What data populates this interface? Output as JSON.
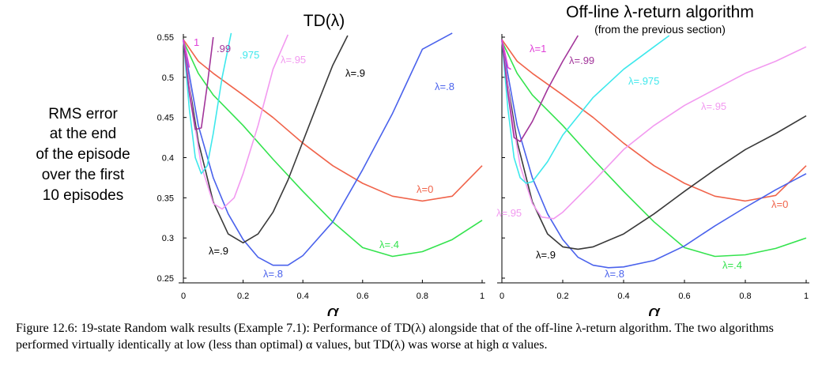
{
  "y_label_lines": [
    "RMS error",
    "at the end",
    "of the episode",
    "over the first",
    "10 episodes"
  ],
  "caption": "Figure 12.6: 19-state Random walk results (Example 7.1): Performance of TD(λ) alongside that of the off-line λ-return algorithm. The two algorithms performed virtually identically at low (less than optimal) α values, but TD(λ) was worse at high α values.",
  "chart_data": [
    {
      "type": "line",
      "title": "TD(λ)",
      "subtitle": "",
      "xlabel": "α",
      "ylabel": "RMS error at the end of the episode over the first 10 episodes",
      "xlim": [
        0,
        1
      ],
      "ylim": [
        0.25,
        0.55
      ],
      "xticks": [
        "0",
        "0.2",
        "0.4",
        "0.6",
        "0.8",
        "1"
      ],
      "yticks": [
        "0.25",
        "0.3",
        "0.35",
        "0.4",
        "0.45",
        "0.5",
        "0.55"
      ],
      "series": [
        {
          "name": "λ=0",
          "color": "#f0634a",
          "x": [
            0,
            0.05,
            0.1,
            0.2,
            0.3,
            0.4,
            0.5,
            0.6,
            0.7,
            0.8,
            0.9,
            1.0
          ],
          "y": [
            0.547,
            0.52,
            0.505,
            0.478,
            0.45,
            0.418,
            0.39,
            0.368,
            0.352,
            0.346,
            0.352,
            0.39
          ]
        },
        {
          "name": "λ=.4",
          "color": "#34e34e",
          "x": [
            0,
            0.05,
            0.1,
            0.2,
            0.3,
            0.4,
            0.5,
            0.6,
            0.7,
            0.8,
            0.9,
            1.0
          ],
          "y": [
            0.545,
            0.505,
            0.478,
            0.44,
            0.398,
            0.358,
            0.32,
            0.288,
            0.277,
            0.283,
            0.298,
            0.322
          ]
        },
        {
          "name": "λ=.8",
          "color": "#4a62ec",
          "x": [
            0,
            0.05,
            0.1,
            0.15,
            0.2,
            0.25,
            0.3,
            0.35,
            0.4,
            0.5,
            0.6,
            0.7,
            0.8,
            0.9
          ],
          "y": [
            0.545,
            0.44,
            0.375,
            0.33,
            0.298,
            0.276,
            0.266,
            0.266,
            0.278,
            0.32,
            0.385,
            0.455,
            0.535,
            0.555
          ]
        },
        {
          "name": "λ=.9",
          "color": "#3a3a3a",
          "x": [
            0,
            0.02,
            0.05,
            0.1,
            0.15,
            0.2,
            0.25,
            0.3,
            0.35,
            0.4,
            0.45,
            0.5,
            0.55
          ],
          "y": [
            0.547,
            0.49,
            0.42,
            0.345,
            0.305,
            0.294,
            0.305,
            0.332,
            0.372,
            0.42,
            0.468,
            0.515,
            0.552
          ]
        },
        {
          "name": "λ=.95",
          "color": "#f29af0",
          "x": [
            0,
            0.03,
            0.06,
            0.1,
            0.13,
            0.17,
            0.2,
            0.25,
            0.3,
            0.35
          ],
          "y": [
            0.547,
            0.46,
            0.39,
            0.343,
            0.336,
            0.35,
            0.38,
            0.44,
            0.51,
            0.553
          ]
        },
        {
          "name": ".975",
          "color": "#3ee8ec",
          "x": [
            0,
            0.02,
            0.04,
            0.06,
            0.08,
            0.1,
            0.13,
            0.16
          ],
          "y": [
            0.547,
            0.46,
            0.4,
            0.38,
            0.39,
            0.43,
            0.5,
            0.555
          ]
        },
        {
          "name": ".99",
          "color": "#a2359a",
          "x": [
            0,
            0.02,
            0.04,
            0.06,
            0.08,
            0.1
          ],
          "y": [
            0.547,
            0.48,
            0.435,
            0.437,
            0.49,
            0.55
          ]
        },
        {
          "name": "1",
          "color": "#e040d8",
          "x": [
            0,
            0.01,
            0.02
          ],
          "y": [
            0.547,
            0.53,
            0.512
          ]
        }
      ]
    },
    {
      "type": "line",
      "title": "Off-line λ-return algorithm",
      "subtitle": "(from the previous section)",
      "xlabel": "α",
      "ylabel": "",
      "xlim": [
        0,
        1
      ],
      "ylim": [
        0.25,
        0.55
      ],
      "xticks": [
        "0",
        "0.2",
        "0.4",
        "0.6",
        "0.8",
        "1"
      ],
      "yticks": [],
      "series": [
        {
          "name": "λ=0",
          "color": "#f0634a",
          "x": [
            0,
            0.05,
            0.1,
            0.2,
            0.3,
            0.4,
            0.5,
            0.6,
            0.7,
            0.8,
            0.9,
            1.0
          ],
          "y": [
            0.547,
            0.52,
            0.505,
            0.478,
            0.45,
            0.418,
            0.39,
            0.368,
            0.352,
            0.346,
            0.353,
            0.39
          ]
        },
        {
          "name": "λ=.4",
          "color": "#34e34e",
          "x": [
            0,
            0.05,
            0.1,
            0.2,
            0.3,
            0.4,
            0.5,
            0.6,
            0.7,
            0.8,
            0.9,
            1.0
          ],
          "y": [
            0.545,
            0.505,
            0.478,
            0.44,
            0.398,
            0.358,
            0.32,
            0.288,
            0.277,
            0.279,
            0.287,
            0.3
          ]
        },
        {
          "name": "λ=.8",
          "color": "#4a62ec",
          "x": [
            0,
            0.05,
            0.1,
            0.15,
            0.2,
            0.25,
            0.3,
            0.35,
            0.4,
            0.5,
            0.6,
            0.7,
            0.8,
            0.9,
            1.0
          ],
          "y": [
            0.545,
            0.44,
            0.375,
            0.33,
            0.298,
            0.276,
            0.266,
            0.263,
            0.264,
            0.272,
            0.29,
            0.315,
            0.338,
            0.36,
            0.38
          ]
        },
        {
          "name": "λ=.9",
          "color": "#3a3a3a",
          "x": [
            0,
            0.02,
            0.05,
            0.1,
            0.15,
            0.2,
            0.25,
            0.3,
            0.4,
            0.5,
            0.6,
            0.7,
            0.8,
            0.9,
            1.0
          ],
          "y": [
            0.547,
            0.49,
            0.42,
            0.345,
            0.305,
            0.289,
            0.286,
            0.289,
            0.305,
            0.33,
            0.358,
            0.385,
            0.41,
            0.43,
            0.452
          ]
        },
        {
          "name": "λ=.95",
          "color": "#f29af0",
          "x": [
            0,
            0.03,
            0.06,
            0.1,
            0.13,
            0.17,
            0.2,
            0.3,
            0.4,
            0.5,
            0.6,
            0.7,
            0.8,
            0.9,
            1.0
          ],
          "y": [
            0.547,
            0.46,
            0.39,
            0.343,
            0.326,
            0.324,
            0.332,
            0.37,
            0.41,
            0.44,
            0.465,
            0.485,
            0.505,
            0.52,
            0.538
          ]
        },
        {
          "name": "λ=.975",
          "color": "#3ee8ec",
          "x": [
            0,
            0.02,
            0.04,
            0.06,
            0.08,
            0.1,
            0.15,
            0.2,
            0.3,
            0.4,
            0.5,
            0.55
          ],
          "y": [
            0.547,
            0.46,
            0.4,
            0.375,
            0.368,
            0.37,
            0.395,
            0.428,
            0.475,
            0.51,
            0.538,
            0.552
          ]
        },
        {
          "name": "λ=.99",
          "color": "#a2359a",
          "x": [
            0,
            0.02,
            0.04,
            0.06,
            0.1,
            0.15,
            0.2,
            0.25
          ],
          "y": [
            0.547,
            0.48,
            0.425,
            0.42,
            0.445,
            0.485,
            0.52,
            0.552
          ]
        },
        {
          "name": "λ=1",
          "color": "#e040d8",
          "x": [
            0,
            0.01,
            0.02,
            0.03
          ],
          "y": [
            0.547,
            0.53,
            0.512,
            0.51
          ]
        }
      ]
    }
  ]
}
